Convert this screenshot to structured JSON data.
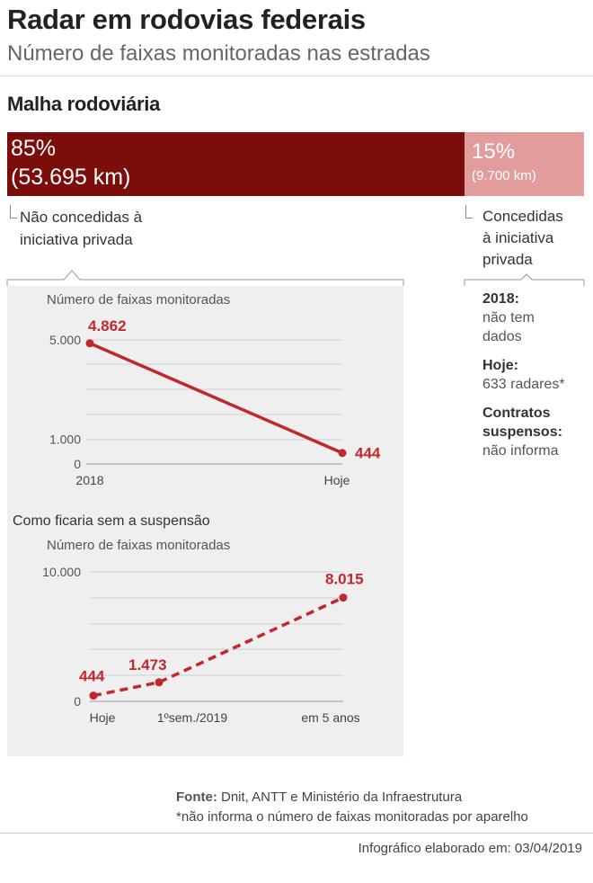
{
  "header": {
    "title": "Radar em rodovias federais",
    "subtitle": "Número de faixas monitoradas nas estradas"
  },
  "network": {
    "section_title": "Malha rodoviária",
    "not_conceded": {
      "pct": "85%",
      "km": "(53.695 km)",
      "label_line1": "Não concedidas à",
      "label_line2": "iniciativa privada",
      "share": 0.85,
      "color": "#7b0e0b"
    },
    "conceded": {
      "pct": "15%",
      "km": "(9.700 km)",
      "label_line1": "Concedidas",
      "label_line2": "à iniciativa",
      "label_line3": "privada",
      "share": 0.15,
      "color": "#e29c9c"
    }
  },
  "info_box": {
    "y2018_label": "2018:",
    "y2018_value_line1": "não tem",
    "y2018_value_line2": "dados",
    "today_label": "Hoje:",
    "today_value": "633 radares*",
    "suspended_label_line1": "Contratos",
    "suspended_label_line2": "suspensos:",
    "suspended_value": "não informa"
  },
  "chart_data": [
    {
      "type": "line",
      "title": "",
      "ylabel": "Número de faixas monitoradas",
      "categories": [
        "2018",
        "Hoje"
      ],
      "series": [
        {
          "values": [
            4862,
            444
          ],
          "labels": [
            "4.862",
            "444"
          ],
          "style": "solid",
          "color": "#c1272d"
        }
      ],
      "ylim": [
        0,
        5000
      ],
      "yticks": [
        {
          "value": 0,
          "label": "0"
        },
        {
          "value": 1000,
          "label": "1.000"
        },
        {
          "value": 5000,
          "label": "5.000"
        }
      ],
      "grid": true
    },
    {
      "type": "line",
      "title": "Como ficaria sem a suspensão",
      "ylabel": "Número de faixas monitoradas",
      "categories": [
        "Hoje",
        "1ºsem./2019",
        "em 5 anos"
      ],
      "series": [
        {
          "values": [
            444,
            1473,
            8015
          ],
          "labels": [
            "444",
            "1.473",
            "8.015"
          ],
          "style": "dashed",
          "color": "#c1272d"
        }
      ],
      "ylim": [
        0,
        10000
      ],
      "yticks": [
        {
          "value": 0,
          "label": "0"
        },
        {
          "value": 10000,
          "label": "10.000"
        }
      ],
      "grid": true
    }
  ],
  "footer": {
    "source_label": "Fonte:",
    "source_text": " Dnit, ANTT e Ministério da Infraestrutura",
    "note": "*não informa o número de faixas monitoradas por aparelho",
    "date_text": "Infográfico elaborado em: 03/04/2019"
  }
}
